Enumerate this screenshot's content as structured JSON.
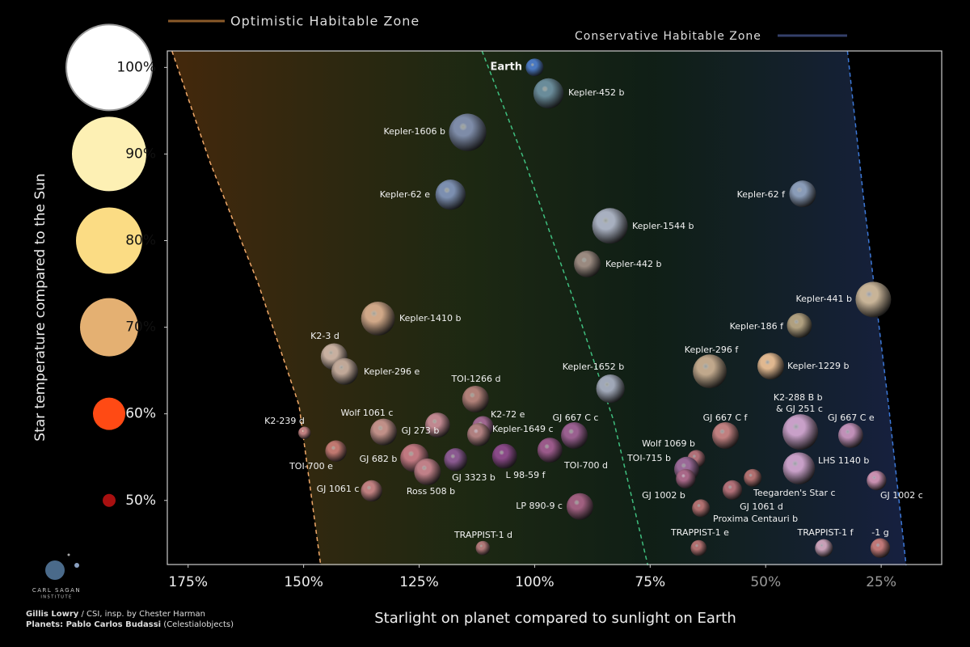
{
  "chart_data": {
    "type": "scatter",
    "xlabel": "Starlight on planet compared to sunlight on Earth",
    "ylabel": "Star temperature compared to the Sun",
    "xlim": [
      179.5,
      11.9
    ],
    "ylim": [
      42.6,
      101.9
    ],
    "xticks": [
      {
        "value": 175,
        "label": "175%"
      },
      {
        "value": 150,
        "label": "150%"
      },
      {
        "value": 125,
        "label": "125%"
      },
      {
        "value": 100,
        "label": "100%"
      },
      {
        "value": 75,
        "label": "75%"
      },
      {
        "value": 50,
        "label": "50%"
      },
      {
        "value": 25,
        "label": "25%"
      }
    ],
    "yticks": [
      {
        "value": 100,
        "label": "100%"
      },
      {
        "value": 90,
        "label": "90%"
      },
      {
        "value": 80,
        "label": "80%"
      },
      {
        "value": 70,
        "label": "70%"
      },
      {
        "value": 60,
        "label": "60%"
      },
      {
        "value": 50,
        "label": "50%"
      }
    ],
    "ytick_colors": [
      "#ffffff",
      "#fdf0b4",
      "#fbdc84",
      "#e4b072",
      "#ff4a14",
      "#a81010"
    ],
    "zones": [
      {
        "name": "Optimistic Habitable Zone",
        "color": "#e8a060"
      },
      {
        "name": "Conservative Habitable Zone",
        "color": "#3fbf7f"
      }
    ],
    "boundaries": [
      {
        "color": "#f0a868",
        "x": [
          178.5,
          170.3,
          159.8,
          151.0,
          146.3
        ],
        "y": [
          101.9,
          89.1,
          75.0,
          61.0,
          42.5
        ]
      },
      {
        "color": "#3fbf7f",
        "x": [
          111.4,
          102.1,
          91.6,
          82.9,
          75.5
        ],
        "y": [
          101.9,
          89.1,
          73.2,
          59.2,
          42.5
        ]
      },
      {
        "color": "#3c78d8",
        "x": [
          32.3,
          28.7,
          23.4,
          19.6
        ],
        "y": [
          101.9,
          84.4,
          61.0,
          42.5
        ]
      }
    ],
    "planets": {
      "names": [
        "Earth",
        "Kepler-452 b",
        "Kepler-1606 b",
        "Kepler-62 e",
        "Kepler-62 f",
        "Kepler-1544 b",
        "Kepler-442 b",
        "Kepler-441 b",
        "Kepler-186 f",
        "Kepler-1410 b",
        "K2-3 d",
        "Kepler-296 e",
        "Kepler-296 f",
        "Kepler-1229 b",
        "Kepler-1652 b",
        "TOI-1266 d",
        "K2-239 d",
        "TOI-700 e",
        "Wolf 1061 c",
        "GJ 273 b",
        "K2-72 e",
        "Kepler-1649 c",
        "GJ 682 b",
        "Ross 508 b",
        "GJ 3323 b",
        "L 98-59 f",
        "GJ 667 C c",
        "TOI-700 d",
        "GJ 1061 c",
        "LP 890-9 c",
        "TRAPPIST-1 d",
        "Wolf 1069 b",
        "TOI-715 b",
        "GJ 1002 b",
        "GJ 667 C f",
        "K2-288 B b & GJ 251 c",
        "GJ 667 C e",
        "LHS 1140 b",
        "GJ 1002 c",
        "Teegarden's Star c",
        "GJ 1061 d",
        "Proxima Centauri b",
        "TRAPPIST-1 e",
        "TRAPPIST-1 f",
        "-1 g"
      ],
      "x": [
        100.0,
        97.0,
        114.5,
        118.2,
        42.0,
        83.7,
        88.6,
        26.7,
        42.7,
        133.9,
        143.4,
        141.1,
        62.1,
        48.9,
        83.6,
        112.8,
        149.8,
        143.0,
        132.7,
        121.0,
        111.2,
        112.1,
        126.0,
        123.2,
        117.1,
        106.5,
        91.4,
        96.7,
        135.3,
        90.2,
        111.2,
        65.0,
        67.1,
        67.3,
        58.7,
        42.5,
        31.6,
        42.8,
        26.0,
        57.2,
        52.8,
        64.0,
        64.5,
        37.4,
        25.2
      ],
      "y": [
        100.0,
        97.0,
        92.5,
        85.3,
        85.4,
        81.7,
        77.3,
        73.2,
        70.2,
        71.0,
        66.6,
        64.9,
        64.9,
        65.5,
        62.9,
        61.7,
        57.8,
        55.7,
        57.9,
        58.7,
        58.5,
        57.6,
        54.9,
        53.3,
        54.7,
        55.1,
        57.5,
        55.8,
        51.1,
        49.3,
        44.5,
        54.8,
        53.6,
        52.5,
        57.5,
        57.9,
        57.5,
        53.7,
        52.3,
        51.2,
        52.6,
        49.1,
        44.5,
        44.5,
        44.5
      ],
      "sizes": [
        1.0,
        1.7,
        2.1,
        1.7,
        1.5,
        2.0,
        1.5,
        2.0,
        1.4,
        1.9,
        1.5,
        1.5,
        1.9,
        1.5,
        1.6,
        1.5,
        0.7,
        1.2,
        1.5,
        1.4,
        1.2,
        1.3,
        1.6,
        1.5,
        1.3,
        1.4,
        1.5,
        1.4,
        1.2,
        1.5,
        0.8,
        1.0,
        1.4,
        1.1,
        1.5,
        2.0,
        1.4,
        1.8,
        1.1,
        1.1,
        1.0,
        1.0,
        0.9,
        1.0,
        1.1
      ],
      "colors": [
        "#4a78c0",
        "#6a8c9a",
        "#7e8ca8",
        "#7c8fb0",
        "#8a9cb8",
        "#a8b0c0",
        "#9a8a80",
        "#c8b498",
        "#b0a080",
        "#d0a888",
        "#c8b0a0",
        "#c0a898",
        "#c0a88c",
        "#e0b890",
        "#a0a8b8",
        "#b08078",
        "#c08080",
        "#c07870",
        "#c09088",
        "#c08890",
        "#a06890",
        "#b08080",
        "#c07880",
        "#c08088",
        "#8a5a90",
        "#8a4a88",
        "#9a6090",
        "#9a5a8a",
        "#c08080",
        "#a06080",
        "#b07878",
        "#b07078",
        "#9a6a98",
        "#a86888",
        "#c08080",
        "#c8a0c8",
        "#c090b8",
        "#c8a0c8",
        "#c890b0",
        "#b07078",
        "#b07070",
        "#b07070",
        "#b07070",
        "#c8a0b8",
        "#c07878"
      ]
    },
    "logo": [
      "CARL SAGAN",
      "INSTITUTE"
    ],
    "credits": [
      [
        "Gillis Lowry",
        " / CSI, insp. by Chester Harman"
      ],
      [
        "Planets: Pablo Carlos Budassi",
        " (Celestialobjects)"
      ]
    ]
  }
}
